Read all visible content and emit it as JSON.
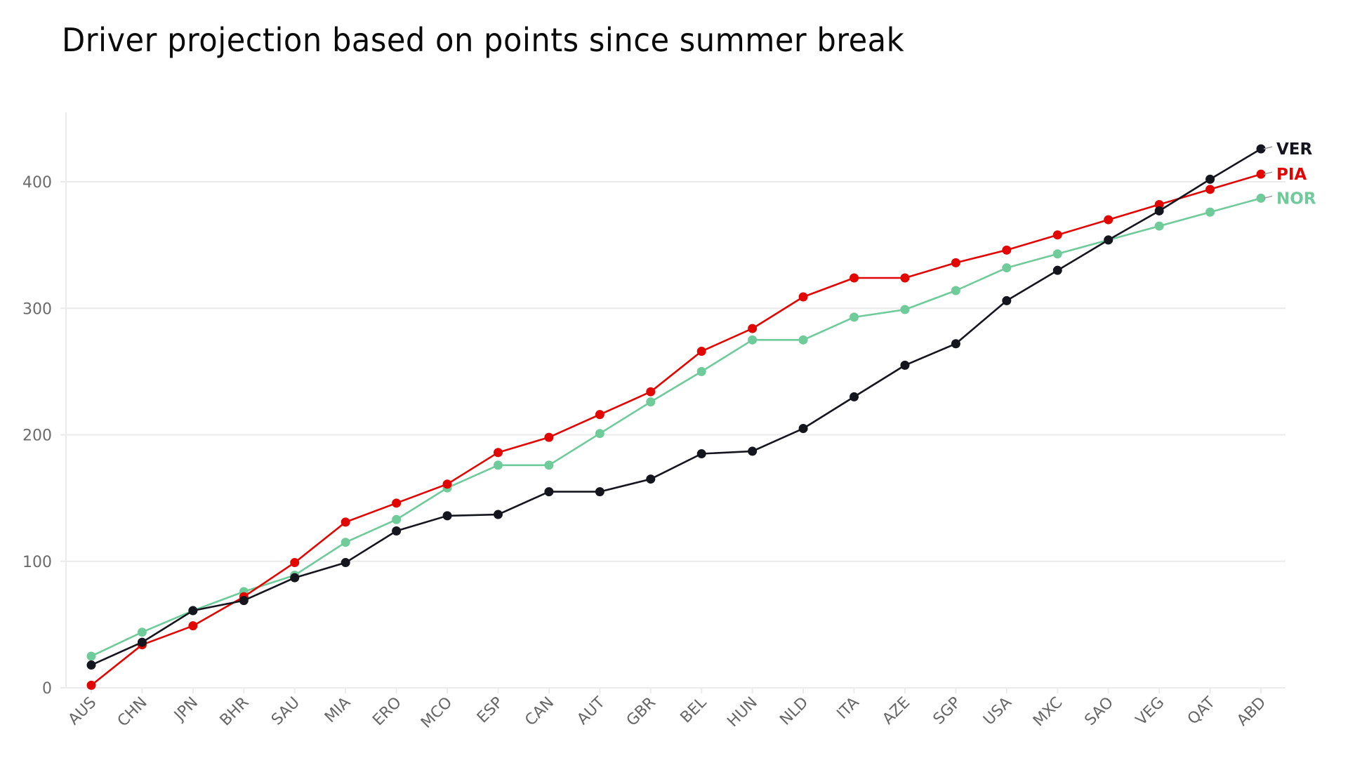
{
  "title": "Driver projection based on points since summer break",
  "chart_data": {
    "type": "line",
    "title": "Driver projection based on points since summer break",
    "xlabel": "",
    "ylabel": "",
    "ylim": [
      0,
      440
    ],
    "yticks": [
      0,
      100,
      200,
      300,
      400
    ],
    "grid": true,
    "legend_position": "inline-right-end",
    "categories": [
      "AUS",
      "CHN",
      "JPN",
      "BHR",
      "SAU",
      "MIA",
      "ERO",
      "MCO",
      "ESP",
      "CAN",
      "AUT",
      "GBR",
      "BEL",
      "HUN",
      "NLD",
      "ITA",
      "AZE",
      "SGP",
      "USA",
      "MXC",
      "SAO",
      "VEG",
      "QAT",
      "ABD"
    ],
    "series": [
      {
        "name": "VER",
        "color": "#15151e",
        "values": [
          18,
          36,
          61,
          69,
          87,
          99,
          124,
          136,
          137,
          155,
          155,
          165,
          185,
          187,
          205,
          230,
          255,
          272,
          306,
          330,
          354,
          377,
          402,
          426
        ]
      },
      {
        "name": "PIA",
        "color": "#e10600",
        "values": [
          2,
          34,
          49,
          72,
          99,
          131,
          146,
          161,
          186,
          198,
          216,
          234,
          266,
          284,
          309,
          324,
          324,
          336,
          346,
          358,
          370,
          382,
          394,
          406
        ]
      },
      {
        "name": "NOR",
        "color": "#6fcb9a",
        "values": [
          25,
          44,
          61,
          76,
          89,
          115,
          133,
          158,
          176,
          176,
          201,
          226,
          250,
          275,
          275,
          293,
          299,
          314,
          332,
          343,
          354,
          365,
          376,
          387
        ]
      }
    ]
  },
  "colors": {
    "grid": "#ebebeb",
    "axis_text": "#6b6b6b",
    "ver": "#15151e",
    "pia": "#e10600",
    "nor": "#6fcb9a"
  }
}
